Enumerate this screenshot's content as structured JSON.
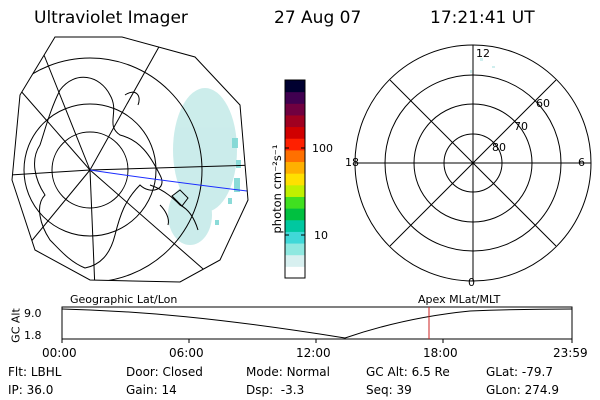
{
  "header": {
    "title": "Ultraviolet Imager",
    "date": "27 Aug 07",
    "time": "17:21:41 UT"
  },
  "colorbar": {
    "unit_label": "photon cm⁻²s⁻¹",
    "tick_100": "100",
    "tick_10": "10",
    "colors": [
      "#ffffff",
      "#d8f0f0",
      "#8fe8e0",
      "#40d8d8",
      "#00c8a0",
      "#00c040",
      "#40e020",
      "#c0f000",
      "#ffe000",
      "#ffb000",
      "#ff7000",
      "#ff2000",
      "#d00000",
      "#a00020",
      "#700040",
      "#400050",
      "#000030"
    ]
  },
  "polar_plot": {
    "labels": {
      "top": "12",
      "left": "18",
      "right": "6",
      "bottom": "0",
      "lat60": "60",
      "lat70": "70",
      "lat80": "80"
    }
  },
  "timeline": {
    "ylabel": "GC Alt",
    "ytick_top": "9.0",
    "ytick_bottom": "1.8",
    "left_caption": "Geographic Lat/Lon",
    "right_caption": "Apex MLat/MLT",
    "xticks": [
      "00:00",
      "06:00",
      "12:00",
      "18:00",
      "23:59"
    ],
    "marker_color": "#cc2222"
  },
  "info": {
    "row1": [
      {
        "label": "Flt:",
        "value": "LBHL"
      },
      {
        "label": "Door:",
        "value": "Closed"
      },
      {
        "label": "Mode:",
        "value": "Normal"
      },
      {
        "label": "GC Alt:",
        "value": "6.5 Re"
      },
      {
        "label": "GLat:",
        "value": "-79.7"
      }
    ],
    "row2": [
      {
        "label": "IP:",
        "value": "36.0"
      },
      {
        "label": "Gain:",
        "value": "14"
      },
      {
        "label": "Dsp:",
        "value": "-3.3"
      },
      {
        "label": "Seq:",
        "value": "39"
      },
      {
        "label": "GLon:",
        "value": "274.9"
      }
    ]
  }
}
